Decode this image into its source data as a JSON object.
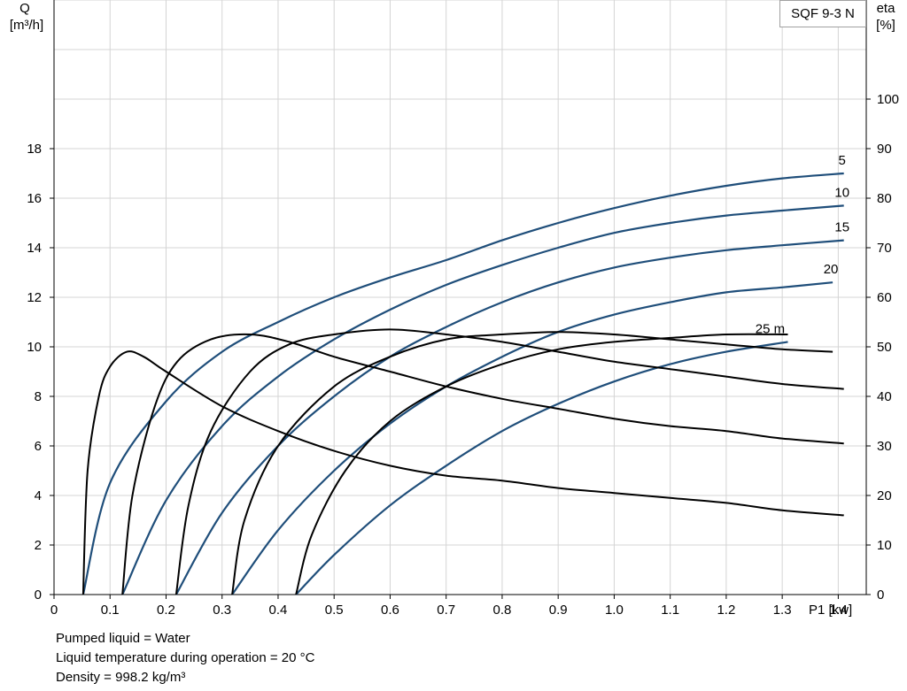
{
  "chart_data": {
    "type": "line",
    "title": "SQF 9-3 N",
    "xlabel": "P1 [kw]",
    "ylabel_left": [
      "Q",
      "[m³/h]"
    ],
    "ylabel_right": [
      "eta",
      "[%]"
    ],
    "xlim": [
      0,
      1.45
    ],
    "ylim_left": [
      0,
      24
    ],
    "ylim_right": [
      0,
      120
    ],
    "x_ticks": [
      "0",
      "0.1",
      "0.2",
      "0.3",
      "0.4",
      "0.5",
      "0.6",
      "0.7",
      "0.8",
      "0.9",
      "1.0",
      "1.1",
      "1.2",
      "1.3",
      "1.4"
    ],
    "y_left_ticks": [
      "0",
      "2",
      "4",
      "6",
      "8",
      "10",
      "12",
      "14",
      "16",
      "18"
    ],
    "y_right_ticks": [
      "0",
      "10",
      "20",
      "30",
      "40",
      "50",
      "60",
      "70",
      "80",
      "90",
      "100"
    ],
    "grid": true,
    "flow_curves": [
      {
        "label": "5",
        "color": "#1f4e7a",
        "points": [
          [
            0.052,
            0
          ],
          [
            0.1,
            4.5
          ],
          [
            0.2,
            7.8
          ],
          [
            0.3,
            9.8
          ],
          [
            0.4,
            11.0
          ],
          [
            0.5,
            12.0
          ],
          [
            0.6,
            12.8
          ],
          [
            0.7,
            13.5
          ],
          [
            0.8,
            14.3
          ],
          [
            0.9,
            15.0
          ],
          [
            1.0,
            15.6
          ],
          [
            1.1,
            16.1
          ],
          [
            1.2,
            16.5
          ],
          [
            1.3,
            16.8
          ],
          [
            1.41,
            17.0
          ]
        ]
      },
      {
        "label": "10",
        "color": "#1f4e7a",
        "points": [
          [
            0.122,
            0
          ],
          [
            0.2,
            3.8
          ],
          [
            0.3,
            6.8
          ],
          [
            0.4,
            8.8
          ],
          [
            0.5,
            10.3
          ],
          [
            0.6,
            11.5
          ],
          [
            0.7,
            12.5
          ],
          [
            0.8,
            13.3
          ],
          [
            0.9,
            14.0
          ],
          [
            1.0,
            14.6
          ],
          [
            1.1,
            15.0
          ],
          [
            1.2,
            15.3
          ],
          [
            1.3,
            15.5
          ],
          [
            1.41,
            15.7
          ]
        ]
      },
      {
        "label": "15",
        "color": "#1f4e7a",
        "points": [
          [
            0.218,
            0
          ],
          [
            0.3,
            3.3
          ],
          [
            0.4,
            6.0
          ],
          [
            0.5,
            8.0
          ],
          [
            0.6,
            9.6
          ],
          [
            0.7,
            10.8
          ],
          [
            0.8,
            11.8
          ],
          [
            0.9,
            12.6
          ],
          [
            1.0,
            13.2
          ],
          [
            1.1,
            13.6
          ],
          [
            1.2,
            13.9
          ],
          [
            1.3,
            14.1
          ],
          [
            1.41,
            14.3
          ]
        ]
      },
      {
        "label": "20",
        "color": "#1f4e7a",
        "points": [
          [
            0.318,
            0
          ],
          [
            0.4,
            2.6
          ],
          [
            0.5,
            5.0
          ],
          [
            0.6,
            6.9
          ],
          [
            0.7,
            8.4
          ],
          [
            0.8,
            9.6
          ],
          [
            0.9,
            10.6
          ],
          [
            1.0,
            11.3
          ],
          [
            1.1,
            11.8
          ],
          [
            1.2,
            12.2
          ],
          [
            1.3,
            12.4
          ],
          [
            1.39,
            12.6
          ]
        ]
      },
      {
        "label": "25 m",
        "color": "#1f4e7a",
        "points": [
          [
            0.432,
            0
          ],
          [
            0.5,
            1.6
          ],
          [
            0.6,
            3.6
          ],
          [
            0.7,
            5.2
          ],
          [
            0.8,
            6.6
          ],
          [
            0.9,
            7.7
          ],
          [
            1.0,
            8.6
          ],
          [
            1.1,
            9.3
          ],
          [
            1.2,
            9.8
          ],
          [
            1.31,
            10.2
          ]
        ]
      }
    ],
    "efficiency_curves": [
      {
        "color": "#000000",
        "points": [
          [
            0.052,
            0
          ],
          [
            0.06,
            25
          ],
          [
            0.08,
            40
          ],
          [
            0.1,
            46
          ],
          [
            0.13,
            49
          ],
          [
            0.16,
            48
          ],
          [
            0.2,
            45
          ],
          [
            0.3,
            38
          ],
          [
            0.4,
            33
          ],
          [
            0.5,
            29
          ],
          [
            0.6,
            26
          ],
          [
            0.7,
            24
          ],
          [
            0.8,
            23
          ],
          [
            0.9,
            21.5
          ],
          [
            1.0,
            20.5
          ],
          [
            1.1,
            19.5
          ],
          [
            1.2,
            18.5
          ],
          [
            1.3,
            17
          ],
          [
            1.41,
            16
          ]
        ]
      },
      {
        "color": "#000000",
        "points": [
          [
            0.122,
            0
          ],
          [
            0.14,
            20
          ],
          [
            0.18,
            38
          ],
          [
            0.22,
            47
          ],
          [
            0.28,
            51.5
          ],
          [
            0.35,
            52.5
          ],
          [
            0.42,
            51
          ],
          [
            0.5,
            48
          ],
          [
            0.6,
            45
          ],
          [
            0.7,
            42
          ],
          [
            0.8,
            39.5
          ],
          [
            0.9,
            37.5
          ],
          [
            1.0,
            35.5
          ],
          [
            1.1,
            34
          ],
          [
            1.2,
            33
          ],
          [
            1.3,
            31.5
          ],
          [
            1.41,
            30.5
          ]
        ]
      },
      {
        "color": "#000000",
        "points": [
          [
            0.218,
            0
          ],
          [
            0.24,
            18
          ],
          [
            0.28,
            33
          ],
          [
            0.35,
            45
          ],
          [
            0.42,
            50.5
          ],
          [
            0.5,
            52.5
          ],
          [
            0.6,
            53.5
          ],
          [
            0.7,
            52.5
          ],
          [
            0.8,
            51
          ],
          [
            0.9,
            49
          ],
          [
            1.0,
            47
          ],
          [
            1.1,
            45.5
          ],
          [
            1.2,
            44
          ],
          [
            1.3,
            42.5
          ],
          [
            1.41,
            41.5
          ]
        ]
      },
      {
        "color": "#000000",
        "points": [
          [
            0.318,
            0
          ],
          [
            0.34,
            15
          ],
          [
            0.4,
            30
          ],
          [
            0.5,
            42
          ],
          [
            0.6,
            48
          ],
          [
            0.7,
            51.5
          ],
          [
            0.8,
            52.5
          ],
          [
            0.9,
            53
          ],
          [
            1.0,
            52.5
          ],
          [
            1.1,
            51.5
          ],
          [
            1.2,
            50.5
          ],
          [
            1.3,
            49.5
          ],
          [
            1.39,
            49
          ]
        ]
      },
      {
        "color": "#000000",
        "points": [
          [
            0.432,
            0
          ],
          [
            0.46,
            12
          ],
          [
            0.52,
            25
          ],
          [
            0.6,
            35
          ],
          [
            0.7,
            42
          ],
          [
            0.8,
            46.5
          ],
          [
            0.9,
            49.5
          ],
          [
            1.0,
            51
          ],
          [
            1.1,
            51.8
          ],
          [
            1.2,
            52.5
          ],
          [
            1.31,
            52.5
          ]
        ]
      }
    ],
    "notes": [
      "Pumped liquid = Water",
      "Liquid temperature during operation = 20 °C",
      "Density = 998.2 kg/m³"
    ]
  }
}
